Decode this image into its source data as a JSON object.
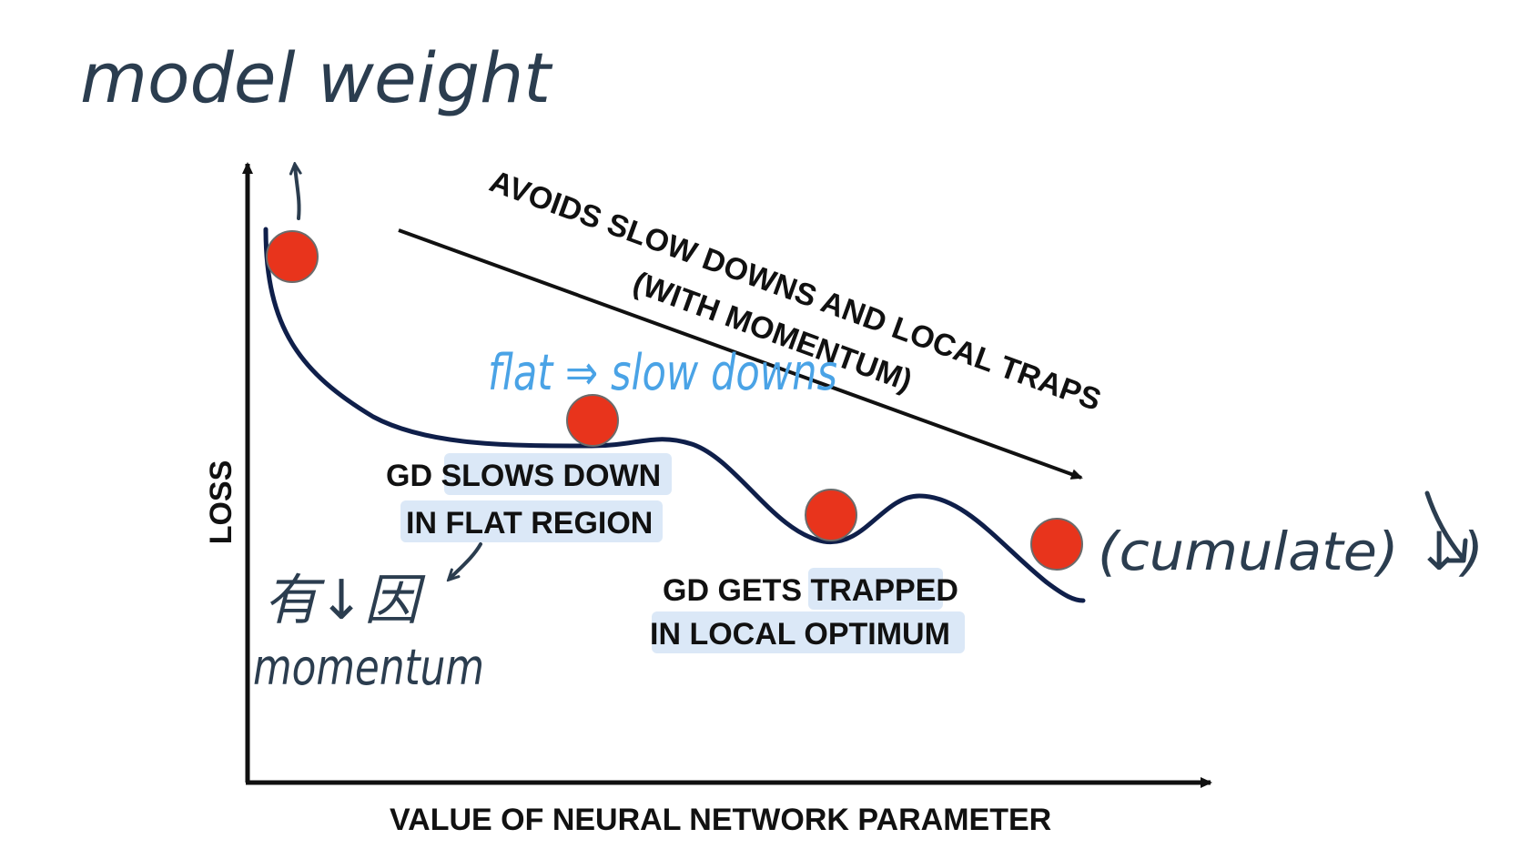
{
  "axes": {
    "x_label": "VALUE OF NEURAL NETWORK PARAMETER",
    "y_label": "LOSS"
  },
  "annotations": {
    "momentum_arrow_line1": "AVOIDS SLOW DOWNS AND LOCAL TRAPS",
    "momentum_arrow_line2": "(WITH MOMENTUM)",
    "flat_region_line1": "GD SLOWS DOWN",
    "flat_region_line2": "IN FLAT REGION",
    "local_optimum_line1": "GD GETS TRAPPED",
    "local_optimum_line2": "IN LOCAL OPTIMUM"
  },
  "handwritten_notes": {
    "top_left": "model weight",
    "flat_note": "flat ⇒ slow downs",
    "chinese_note": "有↓因",
    "momentum_note": "momentum",
    "right_note": "(cumulate) ↓)"
  },
  "colors": {
    "curve": "#0f1f4a",
    "ball": "#e8341c",
    "ball_stroke": "#6b6b6b",
    "axis": "#111111",
    "highlight": "#dbe8f7",
    "handwriting_dark": "#2b3d4f",
    "handwriting_blue": "#4aa3e6"
  }
}
